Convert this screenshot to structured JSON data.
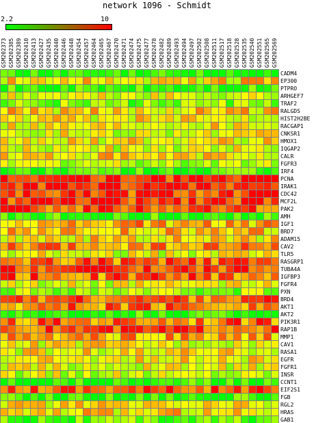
{
  "chart_data": {
    "type": "heatmap",
    "title": "network 1096 - Schmidt",
    "scale": {
      "min": "2.2",
      "max": "10",
      "low_color": "#00ff00",
      "high_color": "#ff0000"
    },
    "columns": [
      "GSM202373",
      "GSM202385",
      "GSM202389",
      "GSM202410",
      "GSM202413",
      "GSM202427",
      "GSM202435",
      "GSM202440",
      "GSM202446",
      "GSM202448",
      "GSM202454",
      "GSM202457",
      "GSM202464",
      "GSM202465",
      "GSM202467",
      "GSM202470",
      "GSM202471",
      "GSM202474",
      "GSM202475",
      "GSM202477",
      "GSM202478",
      "GSM202482",
      "GSM202489",
      "GSM202493",
      "GSM202494",
      "GSM202497",
      "GSM202502",
      "GSM202508",
      "GSM202511",
      "GSM202517",
      "GSM202518",
      "GSM202528",
      "GSM202535",
      "GSM202540",
      "GSM202551",
      "GSM202565",
      "GSM202569"
    ],
    "rows": [
      "CADM4",
      "EP300",
      "PTPRO",
      "ARHGEF7",
      "TRAF2",
      "RALGDS",
      "HIST2H2BE",
      "RACGAP1",
      "CNKSR1",
      "HMOX1",
      "IQGAP2",
      "CALR",
      "FGFR3",
      "IRF4",
      "PCNA",
      "IRAK1",
      "CDC42",
      "MCF2L",
      "PAK2",
      "AMH",
      "IGF1",
      "BRD7",
      "ADAM15",
      "CAV2",
      "TLR5",
      "RASGRP1",
      "TUBA4A",
      "IGFBP3",
      "FGFR4",
      "PXN",
      "BRD4",
      "AKT1",
      "AKT2",
      "PIK3R1",
      "RAP1B",
      "MMP1",
      "CAV1",
      "RASA1",
      "EGFR",
      "FGFR1",
      "INSR",
      "CCNT1",
      "EIF2S1",
      "FGB",
      "RGL2",
      "HRAS",
      "GAB1"
    ],
    "row_levels": [
      0.05,
      0.55,
      0.1,
      0.45,
      0.25,
      0.55,
      0.5,
      0.55,
      0.45,
      0.5,
      0.45,
      0.55,
      0.35,
      0.12,
      0.95,
      0.95,
      0.9,
      0.9,
      0.88,
      0.1,
      0.65,
      0.6,
      0.55,
      0.7,
      0.45,
      0.8,
      0.9,
      0.8,
      0.45,
      0.3,
      0.8,
      0.75,
      0.1,
      0.78,
      0.85,
      0.65,
      0.5,
      0.5,
      0.5,
      0.45,
      0.4,
      0.08,
      0.85,
      0.12,
      0.5,
      0.55,
      0.2
    ]
  }
}
